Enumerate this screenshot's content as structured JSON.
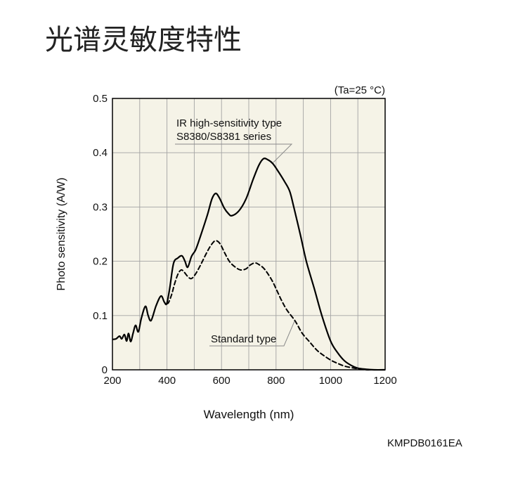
{
  "chart_data": {
    "type": "line",
    "title": "光谱灵敏度特性",
    "xlabel": "Wavelength (nm)",
    "ylabel": "Photo sensitivity (A/W)",
    "xlim": [
      200,
      1200
    ],
    "ylim": [
      0,
      0.5
    ],
    "x_ticks": [
      200,
      400,
      600,
      800,
      1000,
      1200
    ],
    "y_ticks": [
      0,
      0.1,
      0.2,
      0.3,
      0.4,
      0.5
    ],
    "x_grid_step": 100,
    "y_grid_step": 0.1,
    "grid": true,
    "condition": "(Ta=25 °C)",
    "series": [
      {
        "label_lines": [
          "IR high-sensitivity type",
          "S8380/S8381 series"
        ],
        "dashed": false,
        "x": [
          200,
          213,
          226,
          234,
          244,
          252,
          259,
          267,
          276,
          285,
          295,
          306,
          321,
          331,
          342,
          360,
          378,
          390,
          399,
          410,
          424,
          440,
          455,
          466,
          476,
          490,
          505,
          522,
          548,
          565,
          579,
          593,
          610,
          625,
          638,
          664,
          690,
          716,
          737,
          754,
          770,
          788,
          810,
          831,
          850,
          865,
          890,
          911,
          940,
          968,
          1000,
          1025,
          1050,
          1076,
          1100,
          1130,
          1160,
          1200
        ],
        "y": [
          0.056,
          0.057,
          0.062,
          0.057,
          0.065,
          0.053,
          0.067,
          0.052,
          0.068,
          0.082,
          0.07,
          0.095,
          0.117,
          0.1,
          0.091,
          0.118,
          0.136,
          0.125,
          0.122,
          0.15,
          0.196,
          0.206,
          0.21,
          0.2,
          0.189,
          0.209,
          0.221,
          0.245,
          0.285,
          0.315,
          0.325,
          0.316,
          0.298,
          0.288,
          0.284,
          0.293,
          0.315,
          0.351,
          0.377,
          0.389,
          0.387,
          0.38,
          0.364,
          0.347,
          0.329,
          0.3,
          0.247,
          0.2,
          0.15,
          0.1,
          0.053,
          0.032,
          0.017,
          0.008,
          0.003,
          0.001,
          0,
          0
        ]
      },
      {
        "label_lines": [
          "Standard type"
        ],
        "dashed": true,
        "x": [
          399,
          406,
          418,
          427,
          440,
          452,
          463,
          476,
          489,
          504,
          522,
          548,
          565,
          579,
          595,
          612,
          630,
          651,
          670,
          690,
          705,
          723,
          740,
          755,
          770,
          788,
          805,
          820,
          840,
          870,
          895,
          922,
          950,
          973,
          1000,
          1025,
          1050,
          1076,
          1100,
          1128,
          1150
        ],
        "y": [
          0.122,
          0.124,
          0.14,
          0.157,
          0.176,
          0.184,
          0.18,
          0.172,
          0.168,
          0.176,
          0.192,
          0.218,
          0.232,
          0.238,
          0.232,
          0.215,
          0.199,
          0.189,
          0.184,
          0.186,
          0.193,
          0.197,
          0.193,
          0.187,
          0.177,
          0.162,
          0.144,
          0.128,
          0.11,
          0.09,
          0.068,
          0.052,
          0.036,
          0.027,
          0.018,
          0.012,
          0.007,
          0.004,
          0.002,
          0,
          0
        ]
      }
    ]
  },
  "figure_code": "KMPDB0161EA",
  "colors": {
    "plot_background": "#f5f3e7",
    "line": "#000000",
    "grid": "#a3a3a3"
  }
}
